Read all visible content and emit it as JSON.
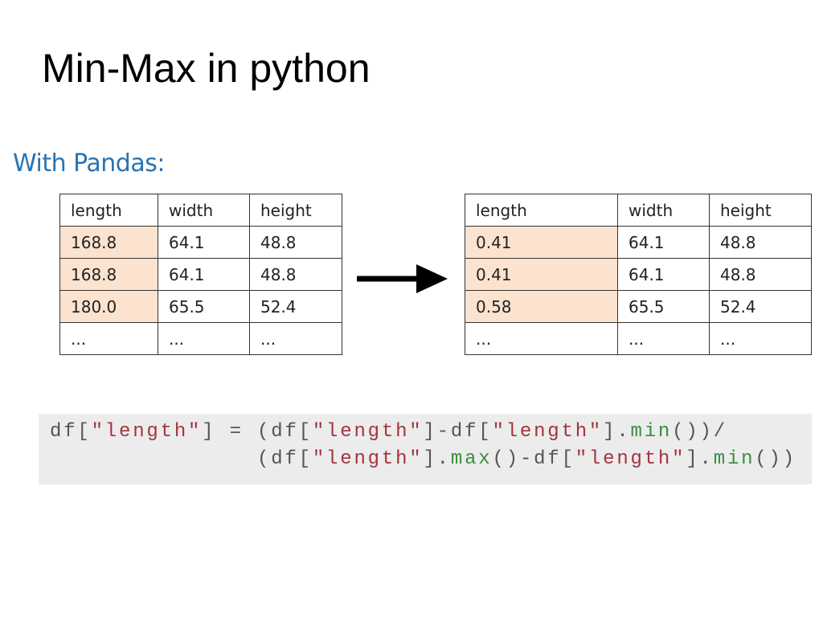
{
  "title": "Min-Max in python",
  "subtitle": "With Pandas:",
  "colors": {
    "highlight": "#fbe3cf",
    "subtitle": "#2a74b0",
    "string": "#a3343c",
    "method": "#3d8c40",
    "code_bg": "#ececec"
  },
  "table_before": {
    "headers": [
      "length",
      "width",
      "height"
    ],
    "rows": [
      [
        "168.8",
        "64.1",
        "48.8"
      ],
      [
        "168.8",
        "64.1",
        "48.8"
      ],
      [
        "180.0",
        "65.5",
        "52.4"
      ],
      [
        "...",
        "...",
        "..."
      ]
    ]
  },
  "table_after": {
    "headers": [
      "length",
      "width",
      "height"
    ],
    "rows": [
      [
        "0.41",
        "64.1",
        "48.8"
      ],
      [
        "0.41",
        "64.1",
        "48.8"
      ],
      [
        "0.58",
        "65.5",
        "52.4"
      ],
      [
        "...",
        "...",
        "..."
      ]
    ]
  },
  "arrow_icon": "right-arrow",
  "code": {
    "lines": [
      [
        {
          "t": "df[",
          "k": "plain"
        },
        {
          "t": "\"length\"",
          "k": "str"
        },
        {
          "t": "] = (df[",
          "k": "plain"
        },
        {
          "t": "\"length\"",
          "k": "str"
        },
        {
          "t": "]-df[",
          "k": "plain"
        },
        {
          "t": "\"length\"",
          "k": "str"
        },
        {
          "t": "].",
          "k": "plain"
        },
        {
          "t": "min",
          "k": "fn"
        },
        {
          "t": "())/",
          "k": "plain"
        }
      ],
      [
        {
          "t": "               (df[",
          "k": "plain"
        },
        {
          "t": "\"length\"",
          "k": "str"
        },
        {
          "t": "].",
          "k": "plain"
        },
        {
          "t": "max",
          "k": "fn"
        },
        {
          "t": "()-df[",
          "k": "plain"
        },
        {
          "t": "\"length\"",
          "k": "str"
        },
        {
          "t": "].",
          "k": "plain"
        },
        {
          "t": "min",
          "k": "fn"
        },
        {
          "t": "())",
          "k": "plain"
        }
      ]
    ]
  }
}
